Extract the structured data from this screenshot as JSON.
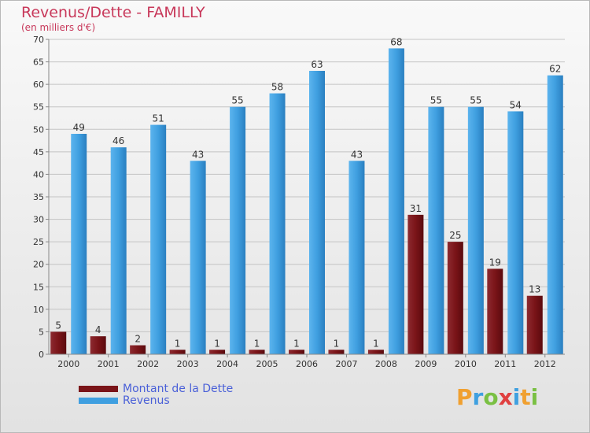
{
  "header": {
    "title": "Revenus/Dette - FAMILLY",
    "subtitle": "(en milliers d'€)"
  },
  "chart_data": {
    "type": "bar",
    "categories": [
      "2000",
      "2001",
      "2002",
      "2003",
      "2004",
      "2005",
      "2006",
      "2007",
      "2008",
      "2009",
      "2010",
      "2011",
      "2012"
    ],
    "series": [
      {
        "name": "Montant de la Dette",
        "color": "#7a1418",
        "values": [
          5,
          4,
          2,
          1,
          1,
          1,
          1,
          1,
          1,
          31,
          25,
          19,
          13
        ]
      },
      {
        "name": "Revenus",
        "color": "#3f9fe0",
        "values": [
          49,
          46,
          51,
          43,
          55,
          58,
          63,
          43,
          68,
          55,
          55,
          54,
          62
        ]
      }
    ],
    "ylim": [
      0,
      70
    ],
    "yticks": [
      0,
      5,
      10,
      15,
      20,
      25,
      30,
      35,
      40,
      45,
      50,
      55,
      60,
      65,
      70
    ],
    "grid": true,
    "legend_position": "bottom-left"
  },
  "legend": {
    "items": [
      {
        "label": "Montant de la Dette",
        "color": "#7a1418"
      },
      {
        "label": "Revenus",
        "color": "#3f9fe0"
      }
    ]
  },
  "logo": {
    "letters": [
      "P",
      "r",
      "o",
      "x",
      "i",
      "t",
      "i"
    ],
    "colors": [
      "#f0a030",
      "#3fa0e0",
      "#7ac043",
      "#e04040",
      "#3fa0e0",
      "#f0a030",
      "#7ac043"
    ]
  }
}
